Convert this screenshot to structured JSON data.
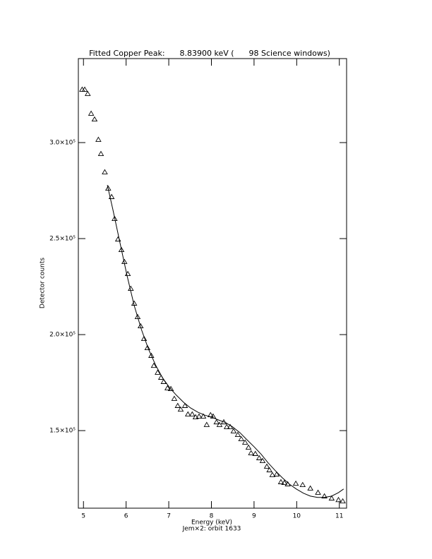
{
  "chart_data": {
    "type": "scatter",
    "title": "Fitted Copper Peak:      8.83900 keV (      98 Science windows)",
    "x_label": "Energy (keV)",
    "subtitle": "Jem×2: orbit 1633",
    "y_label": "Detector counts",
    "xlim": [
      4.88,
      11.17
    ],
    "ylim": [
      109600,
      343750
    ],
    "xticks": [
      5,
      6,
      7,
      8,
      9,
      10,
      11
    ],
    "yticks": [
      {
        "value": 150000,
        "label": "1.5×10⁵"
      },
      {
        "value": 200000,
        "label": "2.0×10⁵"
      },
      {
        "value": 250000,
        "label": "2.5×10⁵"
      },
      {
        "value": 300000,
        "label": "3.0×10⁵"
      }
    ],
    "series": [
      {
        "marker": "triangle",
        "color": "#000000",
        "x": [
          4.97,
          5.03,
          5.1,
          5.18,
          5.26,
          5.35,
          5.41,
          5.5,
          5.58,
          5.66,
          5.73,
          5.81,
          5.89,
          5.96,
          6.04,
          6.11,
          6.19,
          6.27,
          6.34,
          6.42,
          6.5,
          6.59,
          6.65,
          6.74,
          6.82,
          6.88,
          6.97,
          7.05,
          7.13,
          7.21,
          7.28,
          7.38,
          7.45,
          7.55,
          7.63,
          7.71,
          7.81,
          7.89,
          7.98,
          8.04,
          8.12,
          8.19,
          8.29,
          8.36,
          8.44,
          8.52,
          8.62,
          8.7,
          8.79,
          8.87,
          8.93,
          9.03,
          9.12,
          9.2,
          9.3,
          9.36,
          9.43,
          9.53,
          9.63,
          9.71,
          9.79,
          9.98,
          10.14,
          10.32,
          10.5,
          10.65,
          10.82,
          10.98,
          11.08
        ],
        "values": [
          327600,
          327600,
          325400,
          315100,
          312100,
          301500,
          294100,
          284600,
          276100,
          271700,
          260300,
          249600,
          244100,
          237900,
          231600,
          223900,
          216200,
          209200,
          204400,
          197800,
          193000,
          189000,
          183800,
          180200,
          177600,
          175400,
          172100,
          171700,
          166600,
          162900,
          161000,
          162900,
          158500,
          158500,
          157000,
          157400,
          157400,
          153000,
          158100,
          157400,
          154400,
          153000,
          154400,
          151900,
          151900,
          149700,
          147800,
          145600,
          143800,
          141200,
          138300,
          137900,
          135700,
          134200,
          131300,
          129400,
          126900,
          127200,
          123200,
          122800,
          122100,
          122400,
          121700,
          119900,
          117700,
          115800,
          114700,
          113900,
          113200
        ]
      },
      {
        "marker": "line",
        "color": "#000000",
        "x": [
          5.56,
          5.69,
          5.86,
          6.02,
          6.19,
          6.36,
          6.52,
          6.69,
          6.85,
          7.02,
          7.18,
          7.35,
          7.51,
          7.68,
          7.84,
          8.01,
          8.17,
          8.34,
          8.5,
          8.67,
          8.83,
          9.0,
          9.17,
          9.33,
          9.5,
          9.66,
          9.83,
          9.99,
          10.16,
          10.32,
          10.49,
          10.65,
          10.82,
          10.98,
          11.1
        ],
        "values": [
          277900,
          265100,
          247400,
          230900,
          215100,
          202600,
          192700,
          184200,
          177600,
          172400,
          168400,
          164700,
          161800,
          159600,
          158100,
          157000,
          155500,
          154100,
          151900,
          148900,
          145300,
          141600,
          137600,
          133200,
          129100,
          125500,
          122100,
          119600,
          117400,
          115900,
          115200,
          115200,
          115900,
          117700,
          119600
        ]
      }
    ]
  }
}
